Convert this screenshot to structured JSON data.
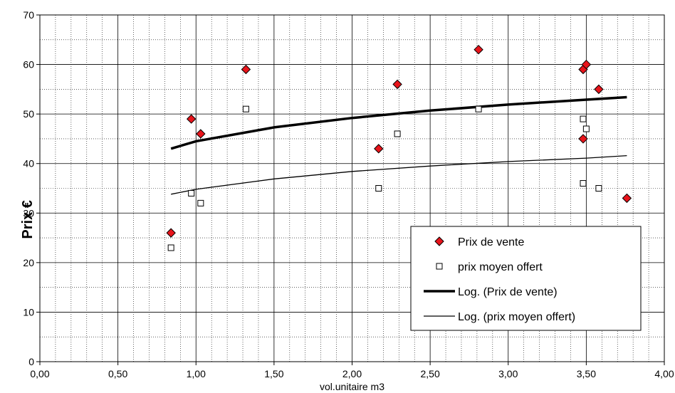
{
  "chart_data": {
    "type": "scatter",
    "title": "",
    "xlabel": "vol.unitaire m3",
    "ylabel": "Prix €",
    "xlim": [
      0,
      4
    ],
    "ylim": [
      0,
      70
    ],
    "x_ticks": [
      "0,00",
      "0,50",
      "1,00",
      "1,50",
      "2,00",
      "2,50",
      "3,00",
      "3,50",
      "4,00"
    ],
    "y_ticks": [
      "0",
      "10",
      "20",
      "30",
      "40",
      "50",
      "60",
      "70"
    ],
    "grid": true,
    "legend_position": "bottom-right",
    "series": [
      {
        "name": "Prix de vente",
        "kind": "scatter",
        "marker": "diamond",
        "color": "#e8141b",
        "points": [
          [
            0.84,
            26
          ],
          [
            0.97,
            49
          ],
          [
            1.03,
            46
          ],
          [
            1.32,
            59
          ],
          [
            2.17,
            43
          ],
          [
            2.29,
            56
          ],
          [
            2.81,
            63
          ],
          [
            3.48,
            59
          ],
          [
            3.48,
            45
          ],
          [
            3.5,
            60
          ],
          [
            3.58,
            55
          ],
          [
            3.76,
            33
          ]
        ]
      },
      {
        "name": "prix moyen offert",
        "kind": "scatter",
        "marker": "square",
        "color": "#ffffff",
        "points": [
          [
            0.84,
            23
          ],
          [
            0.97,
            34
          ],
          [
            1.03,
            32
          ],
          [
            1.32,
            51
          ],
          [
            2.17,
            35
          ],
          [
            2.29,
            46
          ],
          [
            2.81,
            51
          ],
          [
            3.48,
            49
          ],
          [
            3.48,
            36
          ],
          [
            3.5,
            47
          ],
          [
            3.58,
            35
          ]
        ]
      },
      {
        "name": "Log. (Prix de vente)",
        "kind": "line",
        "line_weight": "thick",
        "color": "#000000",
        "points": [
          [
            0.84,
            43
          ],
          [
            1.0,
            44.5
          ],
          [
            1.5,
            47.3
          ],
          [
            2.0,
            49.2
          ],
          [
            2.5,
            50.7
          ],
          [
            3.0,
            51.9
          ],
          [
            3.5,
            52.9
          ],
          [
            3.76,
            53.4
          ]
        ]
      },
      {
        "name": "Log. (prix moyen offert)",
        "kind": "line",
        "line_weight": "thin",
        "color": "#000000",
        "points": [
          [
            0.84,
            33.8
          ],
          [
            1.0,
            34.8
          ],
          [
            1.5,
            36.9
          ],
          [
            2.0,
            38.4
          ],
          [
            2.5,
            39.5
          ],
          [
            3.0,
            40.4
          ],
          [
            3.5,
            41.1
          ],
          [
            3.76,
            41.6
          ]
        ]
      }
    ]
  }
}
